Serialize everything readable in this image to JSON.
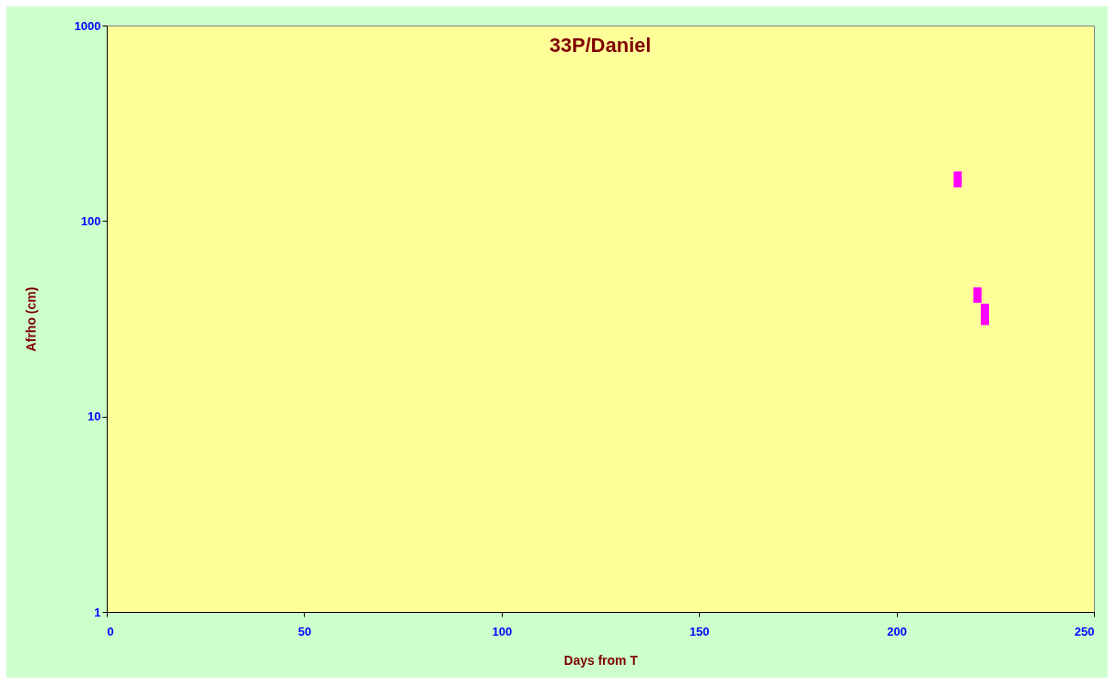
{
  "chart_data": {
    "type": "scatter",
    "title": "33P/Daniel",
    "xlabel": "Days from T",
    "ylabel": "Afrho (cm)",
    "x": [
      215.5,
      215.5,
      220.5,
      220.5,
      222.4,
      222.4,
      222.4
    ],
    "series": [
      {
        "color": "#ff00ff",
        "values": [
          171,
          156,
          43.6,
          40,
          36,
          33.6,
          30.8
        ]
      }
    ],
    "marker": "square",
    "log": "y",
    "grid": false,
    "xlim": [
      0,
      250
    ],
    "xticks": [
      0,
      50,
      100,
      150,
      200,
      250
    ],
    "ylim": [
      1,
      1000
    ],
    "yticks": [
      1,
      10,
      100,
      1000
    ]
  }
}
